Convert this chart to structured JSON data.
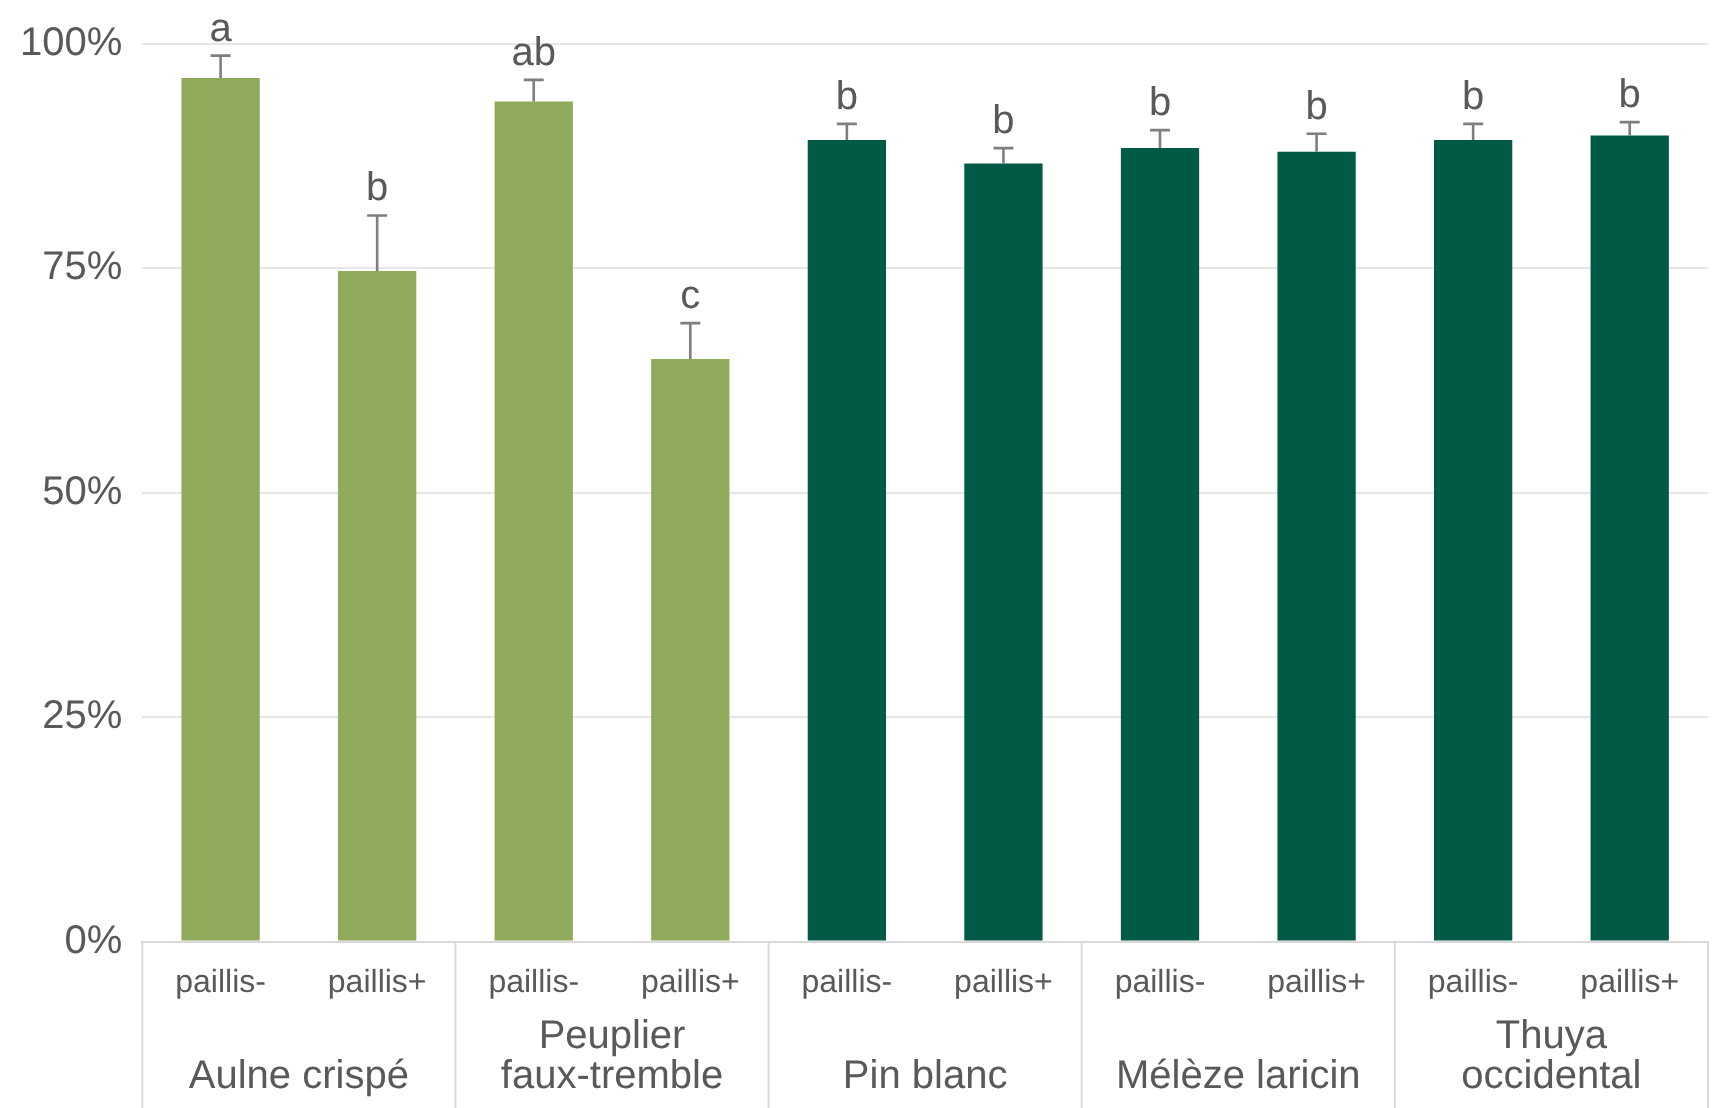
{
  "chart_data": {
    "type": "bar",
    "categories": [
      "paillis-",
      "paillis+",
      "paillis-",
      "paillis+",
      "paillis-",
      "paillis+",
      "paillis-",
      "paillis+",
      "paillis-",
      "paillis+"
    ],
    "values": [
      96.2,
      74.7,
      93.6,
      64.9,
      89.3,
      86.7,
      88.4,
      88.0,
      89.3,
      89.8
    ],
    "errors": [
      [
        96.2,
        98.7
      ],
      [
        74.7,
        80.9
      ],
      [
        93.6,
        96.0
      ],
      [
        64.9,
        68.9
      ],
      [
        89.3,
        91.1
      ],
      [
        86.7,
        88.4
      ],
      [
        88.4,
        90.4
      ],
      [
        88.0,
        90.0
      ],
      [
        89.3,
        91.1
      ],
      [
        89.8,
        91.3
      ]
    ],
    "value_labels": [
      "a",
      "b",
      "ab",
      "c",
      "b",
      "b",
      "b",
      "b",
      "b",
      "b"
    ],
    "colors": [
      "#8faa5a",
      "#8faa5a",
      "#8faa5a",
      "#8faa5a",
      "#005a46",
      "#005a46",
      "#005a46",
      "#005a46",
      "#005a46",
      "#005a46"
    ],
    "annotations": [
      "Aulne crispé",
      "Peuplier faux-tremble",
      "Pin blanc",
      "Mélèze laricin",
      "Thuya occidental"
    ],
    "ylim": [
      0,
      100
    ],
    "yticks": [
      {
        "value": 0,
        "label": "0%"
      },
      {
        "value": 25,
        "label": "25%"
      },
      {
        "value": 50,
        "label": "50%"
      },
      {
        "value": 75,
        "label": "75%"
      },
      {
        "value": 100,
        "label": "100%"
      }
    ],
    "grid": "y",
    "legend": false
  }
}
